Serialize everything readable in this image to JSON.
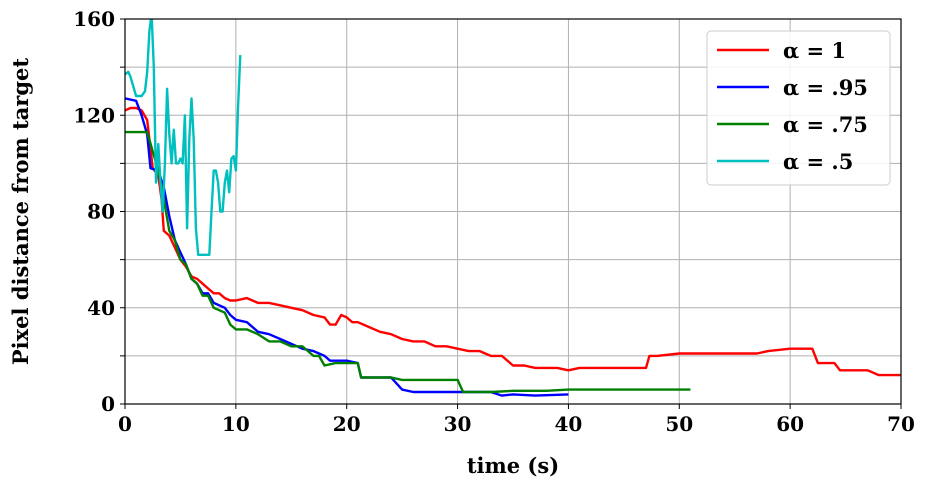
{
  "chart_data": {
    "type": "line",
    "title": "",
    "xlabel": "time (s)",
    "ylabel": "Pixel distance from target",
    "xlim": [
      0,
      70
    ],
    "ylim": [
      0,
      160
    ],
    "xticks": [
      "0",
      "10",
      "20",
      "30",
      "40",
      "50",
      "60",
      "70"
    ],
    "yticks": [
      "0",
      "40",
      "80",
      "120",
      "160"
    ],
    "grid": true,
    "legend_position": "top-right",
    "series": [
      {
        "name": "α = 1",
        "color": "#ff0000",
        "points": [
          [
            0,
            122
          ],
          [
            0.5,
            123
          ],
          [
            1,
            123
          ],
          [
            1.5,
            122
          ],
          [
            2,
            118
          ],
          [
            2.5,
            98
          ],
          [
            3,
            95
          ],
          [
            3.3,
            85
          ],
          [
            3.5,
            72
          ],
          [
            4,
            70
          ],
          [
            4.5,
            65
          ],
          [
            5,
            60
          ],
          [
            5.5,
            57
          ],
          [
            6,
            53
          ],
          [
            6.5,
            52
          ],
          [
            7,
            50
          ],
          [
            7.5,
            48
          ],
          [
            8,
            46
          ],
          [
            8.5,
            46
          ],
          [
            9,
            44
          ],
          [
            9.5,
            43
          ],
          [
            10,
            43
          ],
          [
            11,
            44
          ],
          [
            12,
            42
          ],
          [
            13,
            42
          ],
          [
            14,
            41
          ],
          [
            15,
            40
          ],
          [
            16,
            39
          ],
          [
            17,
            37
          ],
          [
            18,
            36
          ],
          [
            18.5,
            33
          ],
          [
            19,
            33
          ],
          [
            19.5,
            37
          ],
          [
            20,
            36
          ],
          [
            20.5,
            34
          ],
          [
            21,
            34
          ],
          [
            22,
            32
          ],
          [
            23,
            30
          ],
          [
            24,
            29
          ],
          [
            25,
            27
          ],
          [
            26,
            26
          ],
          [
            27,
            26
          ],
          [
            28,
            24
          ],
          [
            29,
            24
          ],
          [
            30,
            23
          ],
          [
            31,
            22
          ],
          [
            32,
            22
          ],
          [
            33,
            20
          ],
          [
            34,
            20
          ],
          [
            35,
            16
          ],
          [
            36,
            16
          ],
          [
            37,
            15
          ],
          [
            38,
            15
          ],
          [
            39,
            15
          ],
          [
            40,
            14
          ],
          [
            41,
            15
          ],
          [
            43,
            15
          ],
          [
            44,
            15
          ],
          [
            45,
            15
          ],
          [
            46,
            15
          ],
          [
            47,
            15
          ],
          [
            47.3,
            20
          ],
          [
            48,
            20
          ],
          [
            50,
            21
          ],
          [
            52,
            21
          ],
          [
            55,
            21
          ],
          [
            57,
            21
          ],
          [
            58,
            22
          ],
          [
            60,
            23
          ],
          [
            62,
            23
          ],
          [
            62.5,
            17
          ],
          [
            64,
            17
          ],
          [
            64.5,
            14
          ],
          [
            66,
            14
          ],
          [
            67,
            14
          ],
          [
            68,
            12
          ],
          [
            70,
            12
          ]
        ]
      },
      {
        "name": "α = .95",
        "color": "#0000ff",
        "points": [
          [
            0,
            127
          ],
          [
            1,
            126
          ],
          [
            1.5,
            120
          ],
          [
            2,
            112
          ],
          [
            2.3,
            98
          ],
          [
            3,
            97
          ],
          [
            3.5,
            90
          ],
          [
            4,
            78
          ],
          [
            4.5,
            68
          ],
          [
            5,
            63
          ],
          [
            5.5,
            58
          ],
          [
            6,
            52
          ],
          [
            6.5,
            50
          ],
          [
            7,
            46
          ],
          [
            7.5,
            46
          ],
          [
            8,
            42
          ],
          [
            9,
            40
          ],
          [
            9.5,
            37
          ],
          [
            10,
            35
          ],
          [
            11,
            34
          ],
          [
            12,
            30
          ],
          [
            13,
            29
          ],
          [
            14,
            27
          ],
          [
            15,
            25
          ],
          [
            16,
            23
          ],
          [
            17,
            22
          ],
          [
            18,
            20
          ],
          [
            18.5,
            18
          ],
          [
            20,
            18
          ],
          [
            21,
            17
          ],
          [
            21.3,
            11
          ],
          [
            23,
            11
          ],
          [
            24,
            11
          ],
          [
            25,
            6
          ],
          [
            26,
            5
          ],
          [
            30,
            5
          ],
          [
            31,
            5
          ],
          [
            33,
            5
          ],
          [
            34,
            3.5
          ],
          [
            35,
            4
          ],
          [
            37,
            3.5
          ],
          [
            40,
            4
          ]
        ]
      },
      {
        "name": "α = .75",
        "color": "#008000",
        "points": [
          [
            0,
            113
          ],
          [
            1,
            113
          ],
          [
            2,
            113
          ],
          [
            2.5,
            105
          ],
          [
            3,
            97
          ],
          [
            3.5,
            85
          ],
          [
            4,
            72
          ],
          [
            4.5,
            68
          ],
          [
            5,
            60
          ],
          [
            5.5,
            58
          ],
          [
            6,
            52
          ],
          [
            6.5,
            50
          ],
          [
            7,
            45
          ],
          [
            7.5,
            45
          ],
          [
            8,
            40
          ],
          [
            8.5,
            39
          ],
          [
            9,
            38
          ],
          [
            9.5,
            33
          ],
          [
            10,
            31
          ],
          [
            11,
            31
          ],
          [
            12,
            29
          ],
          [
            13,
            26
          ],
          [
            14,
            26
          ],
          [
            15,
            24
          ],
          [
            16,
            24
          ],
          [
            17,
            20
          ],
          [
            17.5,
            20
          ],
          [
            18,
            16
          ],
          [
            19,
            17
          ],
          [
            20,
            17
          ],
          [
            21,
            17
          ],
          [
            21.3,
            11
          ],
          [
            24,
            11
          ],
          [
            25,
            10
          ],
          [
            26,
            10
          ],
          [
            28,
            10
          ],
          [
            30,
            10
          ],
          [
            30.5,
            5
          ],
          [
            33,
            5
          ],
          [
            35,
            5.5
          ],
          [
            38,
            5.5
          ],
          [
            40,
            6
          ],
          [
            42,
            6
          ],
          [
            45,
            6
          ],
          [
            47,
            6
          ],
          [
            48,
            6
          ],
          [
            50,
            6
          ],
          [
            51,
            6
          ]
        ]
      },
      {
        "name": "α = .5",
        "color": "#00bfbf",
        "points": [
          [
            0,
            137
          ],
          [
            0.3,
            138
          ],
          [
            0.5,
            136
          ],
          [
            1,
            128
          ],
          [
            1.5,
            128
          ],
          [
            1.8,
            130
          ],
          [
            2,
            138
          ],
          [
            2.2,
            155
          ],
          [
            2.4,
            162
          ],
          [
            2.6,
            140
          ],
          [
            2.8,
            92
          ],
          [
            3,
            108
          ],
          [
            3.2,
            92
          ],
          [
            3.4,
            80
          ],
          [
            3.6,
            100
          ],
          [
            3.8,
            131
          ],
          [
            4,
            112
          ],
          [
            4.2,
            100
          ],
          [
            4.4,
            114
          ],
          [
            4.6,
            100
          ],
          [
            4.8,
            100
          ],
          [
            5,
            102
          ],
          [
            5.2,
            100
          ],
          [
            5.4,
            120
          ],
          [
            5.6,
            73
          ],
          [
            5.8,
            110
          ],
          [
            6,
            127
          ],
          [
            6.2,
            110
          ],
          [
            6.4,
            73
          ],
          [
            6.6,
            62
          ],
          [
            7,
            62
          ],
          [
            7.6,
            62
          ],
          [
            7.8,
            80
          ],
          [
            8,
            97
          ],
          [
            8.2,
            97
          ],
          [
            8.4,
            92
          ],
          [
            8.6,
            80
          ],
          [
            8.8,
            80
          ],
          [
            9,
            92
          ],
          [
            9.2,
            97
          ],
          [
            9.4,
            88
          ],
          [
            9.6,
            102
          ],
          [
            9.8,
            103
          ],
          [
            10,
            97
          ],
          [
            10.2,
            124
          ],
          [
            10.4,
            145
          ]
        ]
      }
    ]
  }
}
